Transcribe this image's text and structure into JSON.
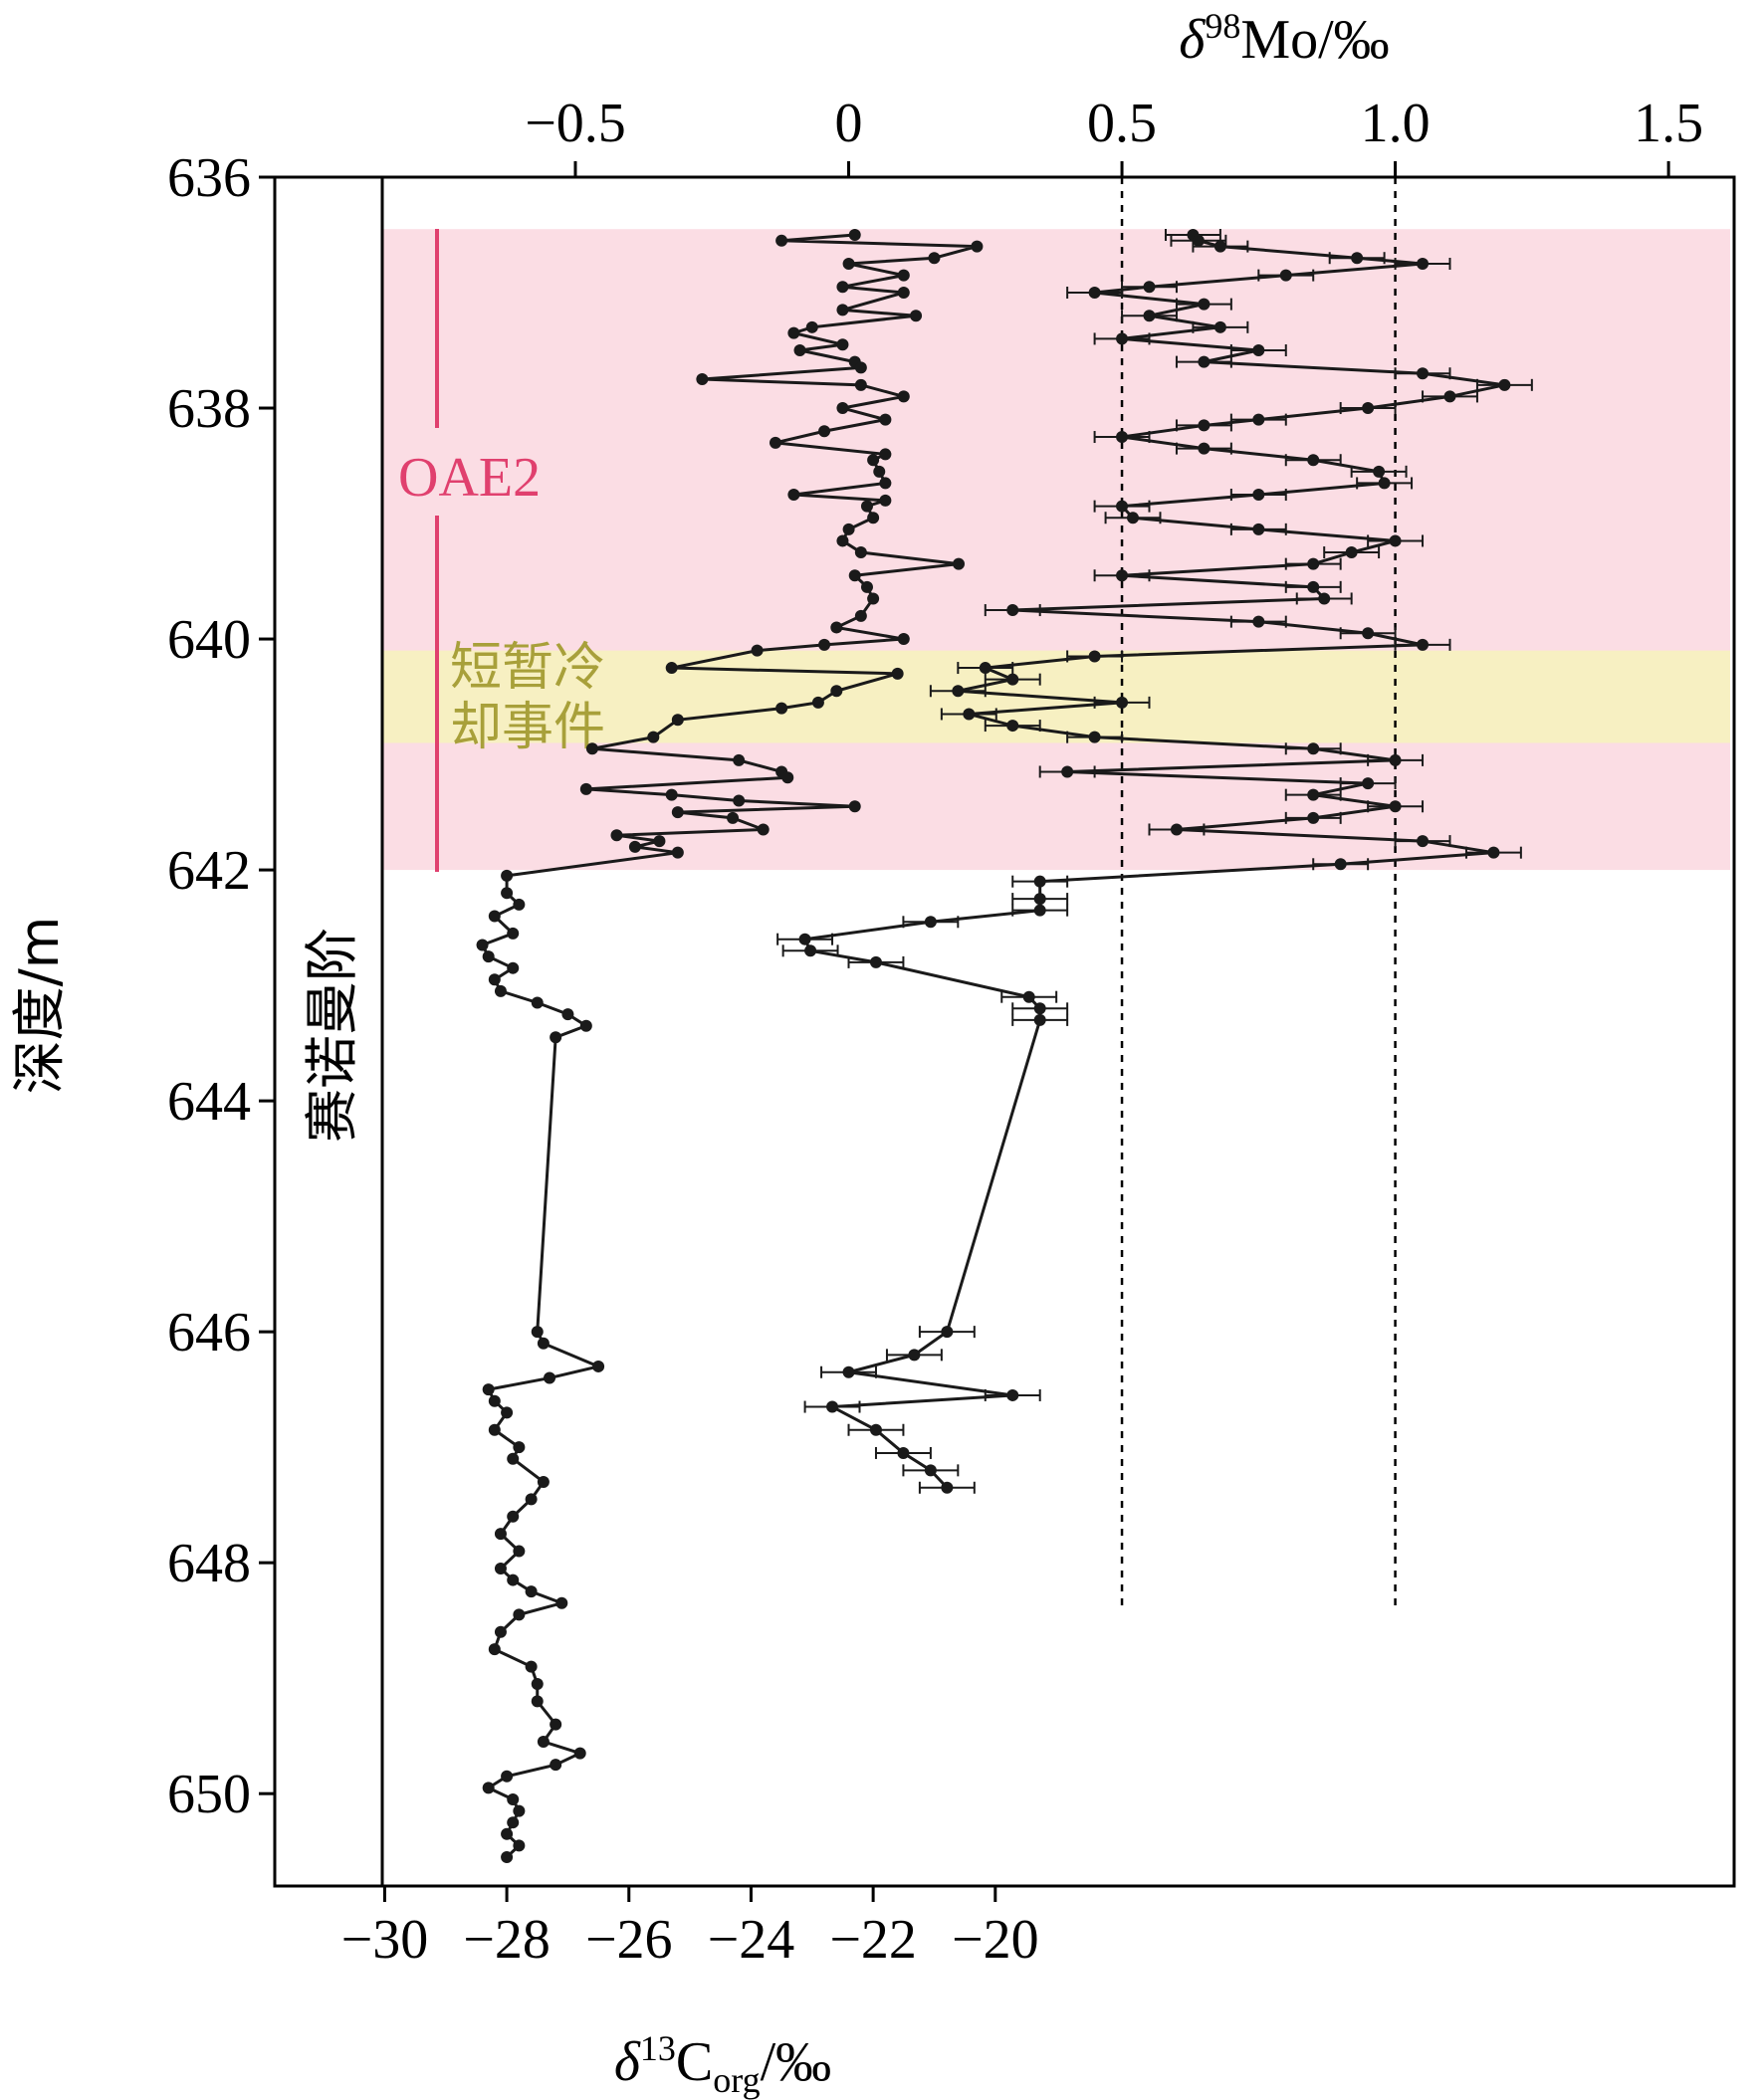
{
  "colors": {
    "oae2_band": "#fbdde4",
    "cooling_band": "#f7f0c2",
    "oae2_label": "#e0406e",
    "cooling_label": "#a8a03a",
    "series": "#1a1a1a",
    "axis": "#000000"
  },
  "labels": {
    "depth_axis": "深度/m",
    "stage": "赛诺曼阶",
    "oae2": "OAE2",
    "cooling_line1": "短暂冷",
    "cooling_line2": "却事件",
    "mo_unit": "Mo/‰",
    "mo_delta": "δ",
    "mo_sup": "98",
    "c_delta": "δ",
    "c_sup": "13",
    "c_main": "C",
    "c_sub": "org",
    "c_unit": "/‰"
  },
  "chart_data": {
    "type": "line",
    "y_axis": {
      "label": "深度/m",
      "range": [
        636,
        650.8
      ],
      "reversed": true,
      "ticks": [
        636,
        638,
        640,
        642,
        644,
        646,
        648,
        650
      ]
    },
    "top_axis": {
      "label": "δ98Mo/‰",
      "range": [
        -1.05,
        1.62
      ],
      "ticks": [
        -0.5,
        0,
        0.5,
        1.0,
        1.5
      ],
      "tick_labels": [
        "−0.5",
        "0",
        "0.5",
        "1.0",
        "1.5"
      ],
      "reference_lines": [
        0.5,
        1.0
      ]
    },
    "bottom_axis": {
      "label": "δ13Corg/‰",
      "range": [
        -31.8,
        -7.9
      ],
      "ticks": [
        -30,
        -28,
        -26,
        -24,
        -22,
        -20
      ],
      "tick_labels": [
        "−30",
        "−28",
        "−26",
        "−24",
        "−22",
        "−20"
      ]
    },
    "bands": [
      {
        "name": "OAE2",
        "from": 636.45,
        "to": 642.0
      },
      {
        "name": "短暂冷却事件",
        "from": 640.1,
        "to": 640.9
      }
    ],
    "series": [
      {
        "axis": "bottom",
        "points": [
          [
            636.5,
            -22.3
          ],
          [
            636.55,
            -23.5
          ],
          [
            636.6,
            -20.3
          ],
          [
            636.7,
            -21.0
          ],
          [
            636.75,
            -22.4
          ],
          [
            636.85,
            -21.5
          ],
          [
            636.95,
            -22.5
          ],
          [
            637.0,
            -21.5
          ],
          [
            637.15,
            -22.5
          ],
          [
            637.2,
            -21.3
          ],
          [
            637.3,
            -23.0
          ],
          [
            637.35,
            -23.3
          ],
          [
            637.45,
            -22.5
          ],
          [
            637.5,
            -23.2
          ],
          [
            637.6,
            -22.3
          ],
          [
            637.65,
            -22.2
          ],
          [
            637.75,
            -24.8
          ],
          [
            637.8,
            -22.2
          ],
          [
            637.9,
            -21.5
          ],
          [
            638.0,
            -22.5
          ],
          [
            638.1,
            -21.8
          ],
          [
            638.2,
            -22.8
          ],
          [
            638.3,
            -23.6
          ],
          [
            638.4,
            -21.8
          ],
          [
            638.45,
            -22.0
          ],
          [
            638.55,
            -21.9
          ],
          [
            638.65,
            -21.8
          ],
          [
            638.75,
            -23.3
          ],
          [
            638.8,
            -21.8
          ],
          [
            638.85,
            -22.1
          ],
          [
            638.95,
            -22.0
          ],
          [
            639.05,
            -22.4
          ],
          [
            639.15,
            -22.5
          ],
          [
            639.25,
            -22.2
          ],
          [
            639.35,
            -20.6
          ],
          [
            639.45,
            -22.3
          ],
          [
            639.55,
            -22.1
          ],
          [
            639.65,
            -22.0
          ],
          [
            639.8,
            -22.2
          ],
          [
            639.9,
            -22.6
          ],
          [
            640.0,
            -21.5
          ],
          [
            640.05,
            -22.8
          ],
          [
            640.1,
            -23.9
          ],
          [
            640.25,
            -25.3
          ],
          [
            640.3,
            -21.6
          ],
          [
            640.45,
            -22.6
          ],
          [
            640.55,
            -22.9
          ],
          [
            640.6,
            -23.5
          ],
          [
            640.7,
            -25.2
          ],
          [
            640.85,
            -25.6
          ],
          [
            640.95,
            -26.6
          ],
          [
            641.05,
            -24.2
          ],
          [
            641.15,
            -23.5
          ],
          [
            641.2,
            -23.4
          ],
          [
            641.3,
            -26.7
          ],
          [
            641.35,
            -25.3
          ],
          [
            641.4,
            -24.2
          ],
          [
            641.45,
            -22.3
          ],
          [
            641.5,
            -25.2
          ],
          [
            641.55,
            -24.3
          ],
          [
            641.65,
            -23.8
          ],
          [
            641.7,
            -26.2
          ],
          [
            641.75,
            -25.5
          ],
          [
            641.8,
            -25.9
          ],
          [
            641.85,
            -25.2
          ],
          [
            642.05,
            -28.0
          ],
          [
            642.2,
            -28.0
          ],
          [
            642.3,
            -27.8
          ],
          [
            642.4,
            -28.2
          ],
          [
            642.55,
            -27.9
          ],
          [
            642.65,
            -28.4
          ],
          [
            642.75,
            -28.3
          ],
          [
            642.85,
            -27.9
          ],
          [
            642.95,
            -28.2
          ],
          [
            643.05,
            -28.1
          ],
          [
            643.15,
            -27.5
          ],
          [
            643.25,
            -27.0
          ],
          [
            643.35,
            -26.7
          ],
          [
            643.45,
            -27.2
          ],
          [
            646.0,
            -27.5
          ],
          [
            646.1,
            -27.4
          ],
          [
            646.3,
            -26.5
          ],
          [
            646.4,
            -27.3
          ],
          [
            646.5,
            -28.3
          ],
          [
            646.6,
            -28.2
          ],
          [
            646.7,
            -28.0
          ],
          [
            646.85,
            -28.2
          ],
          [
            647.0,
            -27.8
          ],
          [
            647.1,
            -27.9
          ],
          [
            647.3,
            -27.4
          ],
          [
            647.45,
            -27.6
          ],
          [
            647.6,
            -27.9
          ],
          [
            647.75,
            -28.1
          ],
          [
            647.9,
            -27.8
          ],
          [
            648.05,
            -28.1
          ],
          [
            648.15,
            -27.9
          ],
          [
            648.25,
            -27.6
          ],
          [
            648.35,
            -27.1
          ],
          [
            648.45,
            -27.8
          ],
          [
            648.6,
            -28.1
          ],
          [
            648.75,
            -28.2
          ],
          [
            648.9,
            -27.6
          ],
          [
            649.05,
            -27.5
          ],
          [
            649.2,
            -27.5
          ],
          [
            649.4,
            -27.2
          ],
          [
            649.55,
            -27.4
          ],
          [
            649.65,
            -26.8
          ],
          [
            649.75,
            -27.2
          ],
          [
            649.85,
            -28.0
          ],
          [
            649.95,
            -28.3
          ],
          [
            650.05,
            -27.9
          ],
          [
            650.15,
            -27.8
          ],
          [
            650.25,
            -27.9
          ],
          [
            650.35,
            -28.0
          ],
          [
            650.45,
            -27.8
          ],
          [
            650.55,
            -28.0
          ]
        ]
      },
      {
        "axis": "top",
        "error": 0.05,
        "points": [
          [
            636.5,
            0.63
          ],
          [
            636.55,
            0.64
          ],
          [
            636.6,
            0.68
          ],
          [
            636.7,
            0.93
          ],
          [
            636.75,
            1.05
          ],
          [
            636.85,
            0.8
          ],
          [
            636.95,
            0.55
          ],
          [
            637.0,
            0.45
          ],
          [
            637.1,
            0.65
          ],
          [
            637.2,
            0.55
          ],
          [
            637.3,
            0.68
          ],
          [
            637.4,
            0.5
          ],
          [
            637.5,
            0.75
          ],
          [
            637.6,
            0.65
          ],
          [
            637.7,
            1.05
          ],
          [
            637.8,
            1.2
          ],
          [
            637.9,
            1.1
          ],
          [
            638.0,
            0.95
          ],
          [
            638.1,
            0.75
          ],
          [
            638.15,
            0.65
          ],
          [
            638.25,
            0.5
          ],
          [
            638.35,
            0.65
          ],
          [
            638.45,
            0.85
          ],
          [
            638.55,
            0.97
          ],
          [
            638.65,
            0.98
          ],
          [
            638.75,
            0.75
          ],
          [
            638.85,
            0.5
          ],
          [
            638.95,
            0.52
          ],
          [
            639.05,
            0.75
          ],
          [
            639.15,
            1.0
          ],
          [
            639.25,
            0.92
          ],
          [
            639.35,
            0.85
          ],
          [
            639.45,
            0.5
          ],
          [
            639.55,
            0.85
          ],
          [
            639.65,
            0.87
          ],
          [
            639.75,
            0.3
          ],
          [
            639.85,
            0.75
          ],
          [
            639.95,
            0.95
          ],
          [
            640.05,
            1.05
          ],
          [
            640.15,
            0.45
          ],
          [
            640.25,
            0.25
          ],
          [
            640.35,
            0.3
          ],
          [
            640.45,
            0.2
          ],
          [
            640.55,
            0.5
          ],
          [
            640.65,
            0.22
          ],
          [
            640.75,
            0.3
          ],
          [
            640.85,
            0.45
          ],
          [
            640.95,
            0.85
          ],
          [
            641.05,
            1.0
          ],
          [
            641.15,
            0.4
          ],
          [
            641.25,
            0.95
          ],
          [
            641.35,
            0.85
          ],
          [
            641.45,
            1.0
          ],
          [
            641.55,
            0.85
          ],
          [
            641.65,
            0.6
          ],
          [
            641.75,
            1.05
          ],
          [
            641.85,
            1.18
          ],
          [
            641.95,
            0.9
          ],
          [
            642.1,
            0.35
          ],
          [
            642.25,
            0.35
          ],
          [
            642.35,
            0.35
          ],
          [
            642.45,
            0.15
          ],
          [
            642.6,
            -0.08
          ],
          [
            642.7,
            -0.07
          ],
          [
            642.8,
            0.05
          ],
          [
            643.1,
            0.33
          ],
          [
            643.2,
            0.35
          ],
          [
            643.3,
            0.35
          ],
          [
            646.0,
            0.18
          ],
          [
            646.2,
            0.12
          ],
          [
            646.35,
            0.0
          ],
          [
            646.55,
            0.3
          ],
          [
            646.65,
            -0.03
          ],
          [
            646.85,
            0.05
          ],
          [
            647.05,
            0.1
          ],
          [
            647.2,
            0.15
          ],
          [
            647.35,
            0.18
          ]
        ]
      }
    ]
  }
}
